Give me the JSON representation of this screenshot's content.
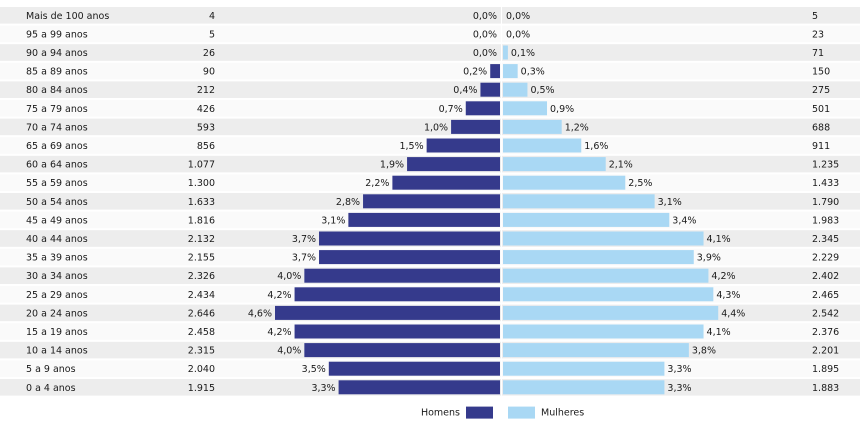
{
  "chart_data": {
    "type": "bar",
    "orientation": "horizontal-pyramid",
    "grid": false,
    "legend_position": "bottom-center",
    "colors": {
      "male": "#353a8c",
      "female": "#a9d8f4",
      "row_alt": "#ededed",
      "row_base": "#fafafa"
    },
    "categories": [
      "Mais de 100 anos",
      "95 a 99 anos",
      "90 a 94 anos",
      "85 a 89 anos",
      "80 a 84 anos",
      "75 a 79 anos",
      "70 a 74 anos",
      "65 a 69 anos",
      "60 a 64 anos",
      "55 a 59 anos",
      "50 a 54 anos",
      "45 a 49 anos",
      "40 a 44 anos",
      "35 a 39 anos",
      "30 a 34 anos",
      "25 a 29 anos",
      "20 a 24 anos",
      "15 a 19 anos",
      "10 a 14 anos",
      "5 a 9 anos",
      "0 a 4 anos"
    ],
    "male_counts": [
      "4",
      "5",
      "26",
      "90",
      "212",
      "426",
      "593",
      "856",
      "1.077",
      "1.300",
      "1.633",
      "1.816",
      "2.132",
      "2.155",
      "2.326",
      "2.434",
      "2.646",
      "2.458",
      "2.315",
      "2.040",
      "1.915"
    ],
    "female_counts": [
      "5",
      "23",
      "71",
      "150",
      "275",
      "501",
      "688",
      "911",
      "1.235",
      "1.433",
      "1.790",
      "1.983",
      "2.345",
      "2.229",
      "2.402",
      "2.465",
      "2.542",
      "2.376",
      "2.201",
      "1.895",
      "1.883"
    ],
    "series": [
      {
        "name": "Homens",
        "values": [
          0.0,
          0.0,
          0.0,
          0.2,
          0.4,
          0.7,
          1.0,
          1.5,
          1.9,
          2.2,
          2.8,
          3.1,
          3.7,
          3.7,
          4.0,
          4.2,
          4.6,
          4.2,
          4.0,
          3.5,
          3.3
        ],
        "labels": [
          "0,0%",
          "0,0%",
          "0,0%",
          "0,2%",
          "0,4%",
          "0,7%",
          "1,0%",
          "1,5%",
          "1,9%",
          "2,2%",
          "2,8%",
          "3,1%",
          "3,7%",
          "3,7%",
          "4,0%",
          "4,2%",
          "4,6%",
          "4,2%",
          "4,0%",
          "3,5%",
          "3,3%"
        ]
      },
      {
        "name": "Mulheres",
        "values": [
          0.0,
          0.0,
          0.1,
          0.3,
          0.5,
          0.9,
          1.2,
          1.6,
          2.1,
          2.5,
          3.1,
          3.4,
          4.1,
          3.9,
          4.2,
          4.3,
          4.4,
          4.1,
          3.8,
          3.3,
          3.3
        ],
        "labels": [
          "0,0%",
          "0,0%",
          "0,1%",
          "0,3%",
          "0,5%",
          "0,9%",
          "1,2%",
          "1,6%",
          "2,1%",
          "2,5%",
          "3,1%",
          "3,4%",
          "4,1%",
          "3,9%",
          "4,2%",
          "4,3%",
          "4,4%",
          "4,1%",
          "3,8%",
          "3,3%",
          "3,3%"
        ]
      }
    ],
    "xlim": [
      -4.6,
      4.6
    ]
  }
}
